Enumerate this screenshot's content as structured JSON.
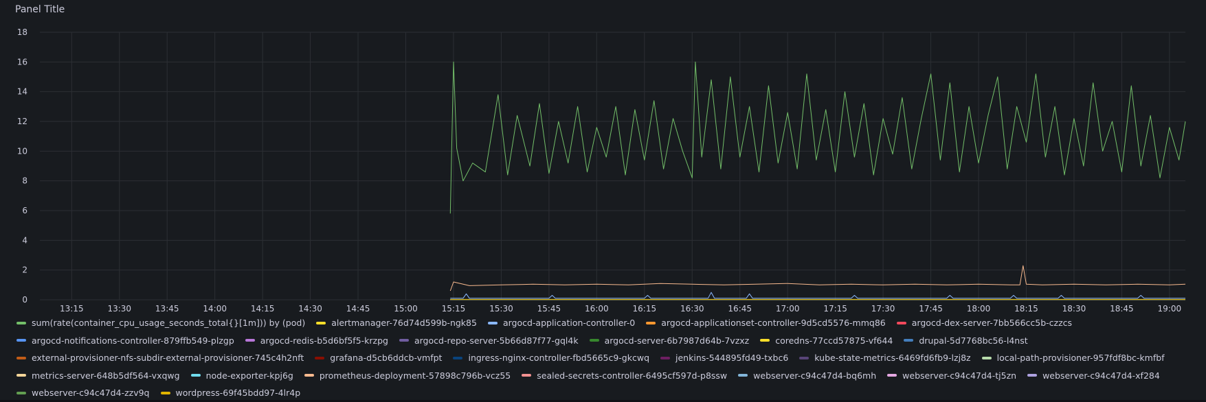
{
  "panel": {
    "title": "Panel Title"
  },
  "chart_data": {
    "type": "line",
    "title": "Panel Title",
    "xlabel": "",
    "ylabel": "",
    "ylim": [
      0,
      18
    ],
    "yticks": [
      0,
      2,
      4,
      6,
      8,
      10,
      12,
      14,
      16,
      18
    ],
    "xlim": [
      "13:05",
      "19:05"
    ],
    "xticks": [
      "13:15",
      "13:30",
      "13:45",
      "14:00",
      "14:15",
      "14:30",
      "14:45",
      "15:00",
      "15:15",
      "15:30",
      "15:45",
      "16:00",
      "16:15",
      "16:30",
      "16:45",
      "17:00",
      "17:15",
      "17:30",
      "17:45",
      "18:00",
      "18:15",
      "18:30",
      "18:45",
      "19:00"
    ],
    "grid": true,
    "legend_placement": "bottom",
    "series": [
      {
        "name": "sum(rate(container_cpu_usage_seconds_total{}[1m])) by (pod)",
        "color": "#73bf69",
        "x": [
          "15:14",
          "15:15",
          "15:16",
          "15:18",
          "15:21",
          "15:25",
          "15:29",
          "15:32",
          "15:35",
          "15:39",
          "15:42",
          "15:45",
          "15:48",
          "15:51",
          "15:54",
          "15:57",
          "16:00",
          "16:03",
          "16:06",
          "16:09",
          "16:12",
          "16:15",
          "16:18",
          "16:21",
          "16:24",
          "16:27",
          "16:30",
          "16:31",
          "16:33",
          "16:36",
          "16:39",
          "16:42",
          "16:45",
          "16:48",
          "16:51",
          "16:54",
          "16:57",
          "17:00",
          "17:03",
          "17:06",
          "17:09",
          "17:12",
          "17:15",
          "17:18",
          "17:21",
          "17:24",
          "17:27",
          "17:30",
          "17:33",
          "17:36",
          "17:39",
          "17:42",
          "17:45",
          "17:48",
          "17:51",
          "17:54",
          "17:57",
          "18:00",
          "18:03",
          "18:06",
          "18:09",
          "18:12",
          "18:15",
          "18:18",
          "18:21",
          "18:24",
          "18:27",
          "18:30",
          "18:33",
          "18:36",
          "18:39",
          "18:42",
          "18:45",
          "18:48",
          "18:51",
          "18:54",
          "18:57",
          "19:00",
          "19:03",
          "19:05"
        ],
        "y": [
          5.8,
          16.0,
          10.2,
          8.0,
          9.2,
          8.6,
          13.8,
          8.4,
          12.4,
          9.0,
          13.2,
          8.5,
          12.0,
          9.2,
          13.0,
          8.6,
          11.6,
          9.6,
          13.0,
          8.4,
          12.8,
          9.4,
          13.4,
          8.8,
          12.2,
          10.0,
          8.2,
          16.0,
          9.6,
          14.8,
          8.8,
          15.0,
          9.6,
          13.0,
          8.6,
          14.4,
          9.2,
          12.6,
          8.8,
          15.2,
          9.4,
          12.8,
          8.6,
          14.0,
          9.6,
          13.2,
          8.4,
          12.2,
          9.8,
          13.6,
          8.8,
          12.2,
          15.2,
          9.4,
          14.6,
          8.6,
          13.0,
          9.2,
          12.4,
          15.0,
          8.8,
          13.0,
          10.6,
          15.2,
          9.6,
          13.0,
          8.4,
          12.2,
          9.0,
          14.6,
          10.0,
          12.0,
          8.6,
          14.4,
          9.0,
          12.4,
          8.2,
          11.6,
          9.4,
          12.0
        ]
      },
      {
        "name": "alertmanager-76d74d599b-ngk85",
        "color": "#fade2a",
        "x": [
          "15:14",
          "19:05"
        ],
        "y": [
          0.03,
          0.03
        ]
      },
      {
        "name": "argocd-application-controller-0",
        "color": "#8ab8ff",
        "x": [
          "15:14",
          "15:18",
          "15:19",
          "15:20",
          "15:45",
          "15:46",
          "15:47",
          "16:15",
          "16:16",
          "16:17",
          "16:35",
          "16:36",
          "16:37",
          "16:47",
          "16:48",
          "16:49",
          "17:20",
          "17:21",
          "17:22",
          "17:50",
          "17:51",
          "17:52",
          "18:10",
          "18:11",
          "18:12",
          "18:25",
          "18:26",
          "18:27",
          "18:50",
          "18:51",
          "18:52",
          "19:05"
        ],
        "y": [
          0.1,
          0.1,
          0.4,
          0.1,
          0.1,
          0.3,
          0.1,
          0.1,
          0.3,
          0.1,
          0.1,
          0.5,
          0.1,
          0.1,
          0.4,
          0.1,
          0.1,
          0.3,
          0.1,
          0.1,
          0.3,
          0.1,
          0.1,
          0.3,
          0.1,
          0.1,
          0.3,
          0.1,
          0.1,
          0.3,
          0.1,
          0.1
        ]
      },
      {
        "name": "argocd-applicationset-controller-9d5cd5576-mmq86",
        "color": "#ff9830",
        "x": [
          "15:14",
          "19:05"
        ],
        "y": [
          0.02,
          0.02
        ]
      },
      {
        "name": "argocd-dex-server-7bb566cc5b-czzcs",
        "color": "#f2495c",
        "x": [
          "15:14",
          "19:05"
        ],
        "y": [
          0.01,
          0.01
        ]
      },
      {
        "name": "argocd-notifications-controller-879ffb549-plzgp",
        "color": "#5794f2",
        "x": [
          "15:14",
          "19:05"
        ],
        "y": [
          0.01,
          0.01
        ]
      },
      {
        "name": "argocd-redis-b5d6bf5f5-krzpg",
        "color": "#b877d9",
        "x": [
          "15:14",
          "19:05"
        ],
        "y": [
          0.01,
          0.01
        ]
      },
      {
        "name": "argocd-repo-server-5b66d87f77-gql4k",
        "color": "#705da0",
        "x": [
          "15:14",
          "19:05"
        ],
        "y": [
          0.02,
          0.02
        ]
      },
      {
        "name": "argocd-server-6b7987d64b-7vzxz",
        "color": "#37872d",
        "x": [
          "15:14",
          "19:05"
        ],
        "y": [
          0.02,
          0.02
        ]
      },
      {
        "name": "coredns-77ccd57875-vf644",
        "color": "#fade2a",
        "x": [
          "15:14",
          "19:05"
        ],
        "y": [
          0.01,
          0.01
        ]
      },
      {
        "name": "drupal-5d7768bc56-l4nst",
        "color": "#447ebc",
        "x": [
          "15:14",
          "19:05"
        ],
        "y": [
          0.01,
          0.01
        ]
      },
      {
        "name": "external-provisioner-nfs-subdir-external-provisioner-745c4h2nft",
        "color": "#c15c17",
        "x": [
          "15:14",
          "19:05"
        ],
        "y": [
          0.0,
          0.0
        ]
      },
      {
        "name": "grafana-d5cb6ddcb-vmfpt",
        "color": "#890f02",
        "x": [
          "15:14",
          "19:05"
        ],
        "y": [
          0.02,
          0.02
        ]
      },
      {
        "name": "ingress-nginx-controller-fbd5665c9-gkcwq",
        "color": "#0a437c",
        "x": [
          "15:14",
          "19:05"
        ],
        "y": [
          0.01,
          0.01
        ]
      },
      {
        "name": "jenkins-544895fd49-txbc6",
        "color": "#6d1f62",
        "x": [
          "15:14",
          "19:05"
        ],
        "y": [
          0.02,
          0.02
        ]
      },
      {
        "name": "kube-state-metrics-6469fd6fb9-lzj8z",
        "color": "#584477",
        "x": [
          "15:14",
          "19:05"
        ],
        "y": [
          0.01,
          0.01
        ]
      },
      {
        "name": "local-path-provisioner-957fdf8bc-kmfbf",
        "color": "#b7dbab",
        "x": [
          "15:14",
          "19:05"
        ],
        "y": [
          0.0,
          0.0
        ]
      },
      {
        "name": "metrics-server-648b5df564-vxqwg",
        "color": "#f4d598",
        "x": [
          "15:14",
          "19:05"
        ],
        "y": [
          0.01,
          0.01
        ]
      },
      {
        "name": "node-exporter-kpj6g",
        "color": "#70dbed",
        "x": [
          "15:14",
          "19:05"
        ],
        "y": [
          0.02,
          0.02
        ]
      },
      {
        "name": "prometheus-deployment-57898c796b-vcz55",
        "color": "#f9ba8f",
        "x": [
          "15:14",
          "15:15",
          "15:20",
          "15:30",
          "15:40",
          "15:50",
          "16:00",
          "16:10",
          "16:20",
          "16:30",
          "16:40",
          "16:50",
          "17:00",
          "17:10",
          "17:20",
          "17:30",
          "17:40",
          "17:50",
          "18:00",
          "18:10",
          "18:13",
          "18:14",
          "18:15",
          "18:20",
          "18:30",
          "18:40",
          "18:50",
          "19:00",
          "19:05"
        ],
        "y": [
          0.6,
          1.2,
          0.95,
          1.0,
          1.05,
          1.0,
          1.05,
          1.0,
          1.1,
          1.05,
          1.0,
          1.05,
          1.1,
          1.0,
          1.05,
          1.0,
          1.05,
          1.0,
          1.05,
          1.0,
          1.0,
          2.3,
          1.05,
          1.0,
          1.05,
          1.0,
          1.05,
          1.0,
          1.05
        ]
      },
      {
        "name": "sealed-secrets-controller-6495cf597d-p8ssw",
        "color": "#f29191",
        "x": [
          "15:14",
          "19:05"
        ],
        "y": [
          0.0,
          0.0
        ]
      },
      {
        "name": "webserver-c94c47d4-bq6mh",
        "color": "#82b5d8",
        "x": [
          "15:14",
          "19:05"
        ],
        "y": [
          0.01,
          0.01
        ]
      },
      {
        "name": "webserver-c94c47d4-tj5zn",
        "color": "#e5a8e2",
        "x": [
          "15:14",
          "19:05"
        ],
        "y": [
          0.01,
          0.01
        ]
      },
      {
        "name": "webserver-c94c47d4-xf284",
        "color": "#aea2e0",
        "x": [
          "15:14",
          "19:05"
        ],
        "y": [
          0.01,
          0.01
        ]
      },
      {
        "name": "webserver-c94c47d4-zzv9q",
        "color": "#629e51",
        "x": [
          "15:14",
          "19:05"
        ],
        "y": [
          0.01,
          0.01
        ]
      },
      {
        "name": "wordpress-69f45bdd97-4lr4p",
        "color": "#e0b400",
        "x": [
          "15:14",
          "19:05"
        ],
        "y": [
          0.02,
          0.02
        ]
      }
    ]
  }
}
